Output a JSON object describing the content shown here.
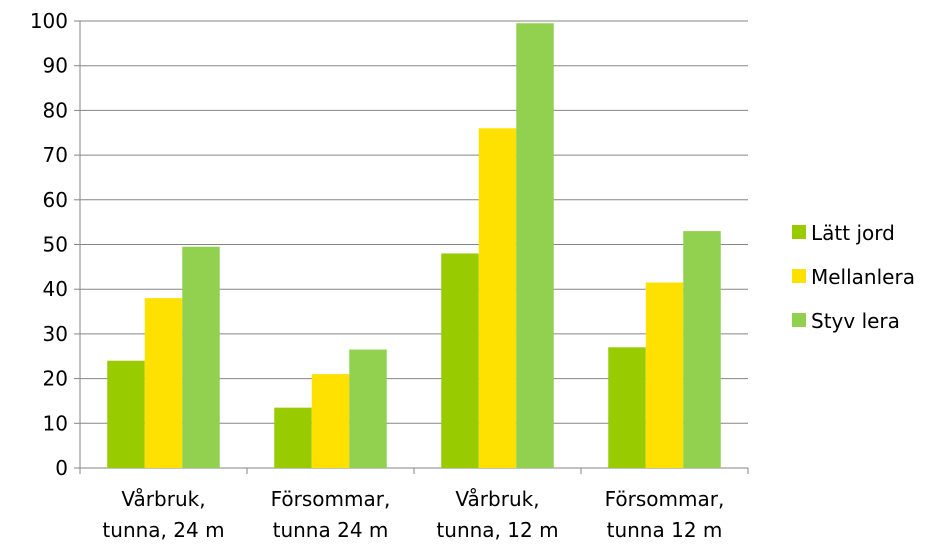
{
  "chart_data": {
    "type": "bar",
    "categories": [
      [
        "Vårbruk,",
        "tunna, 24 m"
      ],
      [
        "Försommar,",
        "tunna 24 m"
      ],
      [
        "Vårbruk,",
        "tunna, 12 m"
      ],
      [
        "Försommar,",
        "tunna 12 m"
      ]
    ],
    "series": [
      {
        "name": "Lätt jord",
        "color": "#99cc00",
        "values": [
          24,
          13.5,
          48,
          27
        ]
      },
      {
        "name": "Mellanlera",
        "color": "#ffe100",
        "values": [
          38,
          21,
          76,
          41.5
        ]
      },
      {
        "name": "Styv lera",
        "color": "#92d050",
        "values": [
          49.5,
          26.5,
          99.5,
          53
        ]
      }
    ],
    "ylim": [
      0,
      100
    ],
    "yticks": [
      0,
      10,
      20,
      30,
      40,
      50,
      60,
      70,
      80,
      90,
      100
    ],
    "grid": true,
    "legend_position": "right"
  }
}
